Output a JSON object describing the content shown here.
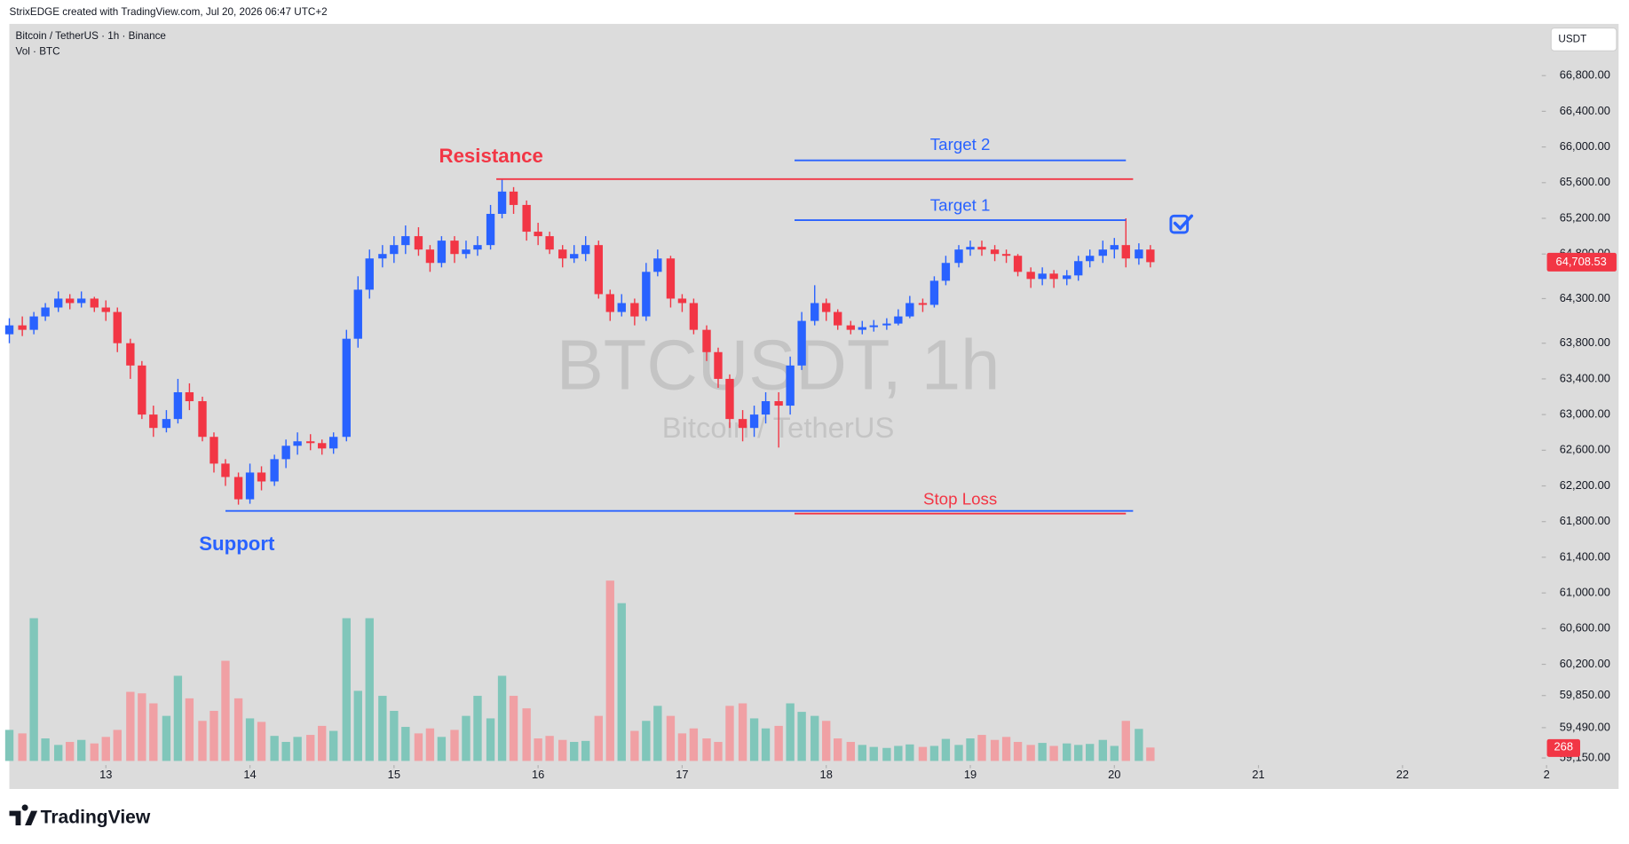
{
  "header": "StrixEDGE created with TradingView.com, Jul 20, 2026 06:47 UTC+2",
  "brand": "TradingView",
  "chart_data": {
    "type": "candlestick",
    "symbol": "Bitcoin / TetherUS · 1h · Binance",
    "volume_title": "Vol · BTC",
    "currency": "USDT",
    "watermark": "BTCUSDT, 1h",
    "watermark_sub": "Bitcoin / TetherUS",
    "up_color": "#2962ff",
    "down_color": "#f23645",
    "volume_up_color": "#80c6ba",
    "volume_down_color": "#f0a0a4",
    "grid": false,
    "xlim": [
      12.33,
      23.5
    ],
    "xticks": [
      13,
      14,
      15,
      16,
      17,
      18,
      19,
      20,
      21,
      22,
      {
        "value": 23,
        "label": "2"
      }
    ],
    "ylim": [
      59070,
      67380
    ],
    "yticks": [
      {
        "value": 66800,
        "label": "66,800.00"
      },
      {
        "value": 66400,
        "label": "66,400.00"
      },
      {
        "value": 66000,
        "label": "66,000.00"
      },
      {
        "value": 65600,
        "label": "65,600.00"
      },
      {
        "value": 65200,
        "label": "65,200.00"
      },
      {
        "value": 64800,
        "label": "64,800.00"
      },
      {
        "value": 64300,
        "label": "64,300.00"
      },
      {
        "value": 63800,
        "label": "63,800.00"
      },
      {
        "value": 63400,
        "label": "63,400.00"
      },
      {
        "value": 63000,
        "label": "63,000.00"
      },
      {
        "value": 62600,
        "label": "62,600.00"
      },
      {
        "value": 62200,
        "label": "62,200.00"
      },
      {
        "value": 61800,
        "label": "61,800.00"
      },
      {
        "value": 61400,
        "label": "61,400.00"
      },
      {
        "value": 61000,
        "label": "61,000.00"
      },
      {
        "value": 60600,
        "label": "60,600.00"
      },
      {
        "value": 60200,
        "label": "60,200.00"
      },
      {
        "value": 59850,
        "label": "59,850.00"
      },
      {
        "value": 59490,
        "label": "59,490.00"
      },
      {
        "value": 59150,
        "label": "59,150.00"
      }
    ],
    "volume_ylim": [
      0,
      4000
    ],
    "price_label": {
      "value": 64708.53,
      "label": "64,708.53"
    },
    "x": [
      12.33,
      12.42,
      12.5,
      12.58,
      12.67,
      12.75,
      12.83,
      12.92,
      13,
      13.08,
      13.17,
      13.25,
      13.33,
      13.42,
      13.5,
      13.58,
      13.67,
      13.75,
      13.83,
      13.92,
      14,
      14.08,
      14.17,
      14.25,
      14.33,
      14.42,
      14.5,
      14.58,
      14.67,
      14.75,
      14.83,
      14.92,
      15,
      15.08,
      15.17,
      15.25,
      15.33,
      15.42,
      15.5,
      15.58,
      15.67,
      15.75,
      15.83,
      15.92,
      16,
      16.08,
      16.17,
      16.25,
      16.33,
      16.42,
      16.5,
      16.58,
      16.67,
      16.75,
      16.83,
      16.92,
      17,
      17.08,
      17.17,
      17.25,
      17.33,
      17.42,
      17.5,
      17.58,
      17.67,
      17.75,
      17.83,
      17.92,
      18,
      18.08,
      18.17,
      18.25,
      18.33,
      18.42,
      18.5,
      18.58,
      18.67,
      18.75,
      18.83,
      18.92,
      19,
      19.08,
      19.17,
      19.25,
      19.33,
      19.42,
      19.5,
      19.58,
      19.67,
      19.75,
      19.83,
      19.92,
      20,
      20.08,
      20.17,
      20.25
    ],
    "open": [
      63900,
      64000,
      63950,
      64100,
      64200,
      64300,
      64250,
      64300,
      64200,
      64150,
      63800,
      63550,
      63000,
      62850,
      62950,
      63250,
      63150,
      62750,
      62450,
      62300,
      62050,
      62350,
      62250,
      62500,
      62650,
      62700,
      62680,
      62620,
      62750,
      63850,
      64400,
      64750,
      64800,
      64900,
      65000,
      64850,
      64700,
      64950,
      64800,
      64850,
      64900,
      65250,
      65500,
      65350,
      65050,
      65000,
      64850,
      64750,
      64800,
      64900,
      64350,
      64150,
      64250,
      64100,
      64600,
      64750,
      64300,
      64250,
      63950,
      63700,
      63400,
      62950,
      62850,
      63000,
      63150,
      63100,
      63550,
      64050,
      64250,
      64150,
      64000,
      63950,
      63980,
      64000,
      64020,
      64100,
      64250,
      64230,
      64500,
      64700,
      64850,
      64880,
      64850,
      64800,
      64780,
      64600,
      64520,
      64580,
      64520,
      64560,
      64720,
      64780,
      64850,
      64900,
      64750,
      64850
    ],
    "high": [
      64080,
      64100,
      64150,
      64250,
      64380,
      64350,
      64380,
      64320,
      64280,
      64200,
      63850,
      63600,
      63100,
      63050,
      63400,
      63350,
      63200,
      62800,
      62500,
      62350,
      62450,
      62420,
      62550,
      62720,
      62800,
      62780,
      62720,
      62800,
      63950,
      64550,
      64850,
      64900,
      65000,
      65120,
      65100,
      64900,
      65000,
      65000,
      64950,
      65000,
      65350,
      65640,
      65550,
      65400,
      65150,
      65050,
      64900,
      64900,
      65000,
      64950,
      64400,
      64350,
      64300,
      64700,
      64850,
      64780,
      64350,
      64300,
      64000,
      63750,
      63450,
      63050,
      63100,
      63250,
      63250,
      63650,
      64150,
      64450,
      64300,
      64180,
      64050,
      64050,
      64060,
      64080,
      64180,
      64330,
      64300,
      64550,
      64780,
      64900,
      64950,
      64950,
      64900,
      64850,
      64800,
      64650,
      64650,
      64620,
      64620,
      64780,
      64850,
      64950,
      64980,
      65200,
      64920,
      64900
    ],
    "low": [
      63800,
      63880,
      63900,
      64050,
      64150,
      64180,
      64200,
      64150,
      64050,
      63700,
      63400,
      62950,
      62750,
      62800,
      62900,
      63050,
      62700,
      62350,
      62200,
      61990,
      62000,
      62150,
      62200,
      62400,
      62550,
      62600,
      62550,
      62560,
      62700,
      63750,
      64300,
      64650,
      64700,
      64800,
      64780,
      64600,
      64650,
      64700,
      64750,
      64780,
      64850,
      65200,
      65250,
      64950,
      64900,
      64800,
      64650,
      64700,
      64720,
      64300,
      64050,
      64100,
      64000,
      64050,
      64550,
      64200,
      64150,
      63900,
      63600,
      63300,
      62850,
      62700,
      62750,
      62900,
      62630,
      63000,
      63500,
      64000,
      64050,
      63950,
      63900,
      63900,
      63930,
      63950,
      64000,
      64080,
      64150,
      64200,
      64450,
      64650,
      64780,
      64780,
      64720,
      64700,
      64550,
      64420,
      64450,
      64420,
      64450,
      64500,
      64650,
      64700,
      64750,
      64650,
      64680,
      64650
    ],
    "close": [
      64000,
      63950,
      64100,
      64200,
      64300,
      64250,
      64300,
      64200,
      64150,
      63800,
      63550,
      63000,
      62850,
      62950,
      63250,
      63150,
      62750,
      62450,
      62300,
      62050,
      62350,
      62250,
      62500,
      62650,
      62700,
      62680,
      62620,
      62750,
      63850,
      64400,
      64750,
      64800,
      64900,
      65000,
      64850,
      64700,
      64950,
      64800,
      64850,
      64900,
      65250,
      65500,
      65350,
      65050,
      65000,
      64850,
      64750,
      64800,
      64900,
      64350,
      64150,
      64250,
      64100,
      64600,
      64750,
      64300,
      64250,
      63950,
      63700,
      63400,
      62950,
      62850,
      63000,
      63150,
      63100,
      63550,
      64050,
      64250,
      64150,
      64000,
      63950,
      63980,
      64000,
      64020,
      64100,
      64250,
      64230,
      64500,
      64700,
      64850,
      64880,
      64850,
      64800,
      64780,
      64600,
      64520,
      64580,
      64520,
      64560,
      64720,
      64780,
      64850,
      64900,
      64750,
      64850,
      64708.53
    ],
    "volume": [
      620,
      550,
      2850,
      450,
      320,
      380,
      420,
      350,
      480,
      620,
      1380,
      1350,
      1150,
      900,
      1700,
      1250,
      800,
      1000,
      2000,
      1250,
      850,
      780,
      500,
      380,
      480,
      520,
      700,
      600,
      2850,
      1400,
      2850,
      1300,
      1000,
      680,
      550,
      650,
      480,
      620,
      900,
      1300,
      850,
      1700,
      1300,
      1050,
      450,
      500,
      420,
      380,
      400,
      900,
      3600,
      3150,
      600,
      800,
      1100,
      900,
      550,
      650,
      450,
      380,
      1100,
      1150,
      850,
      650,
      700,
      1150,
      980,
      900,
      800,
      450,
      380,
      320,
      280,
      260,
      300,
      330,
      280,
      300,
      440,
      320,
      450,
      520,
      420,
      480,
      380,
      320,
      360,
      300,
      350,
      320,
      340,
      420,
      300,
      800,
      640,
      268
    ],
    "annotations": [
      {
        "text": "Resistance",
        "price": 65640,
        "x0": 15.71,
        "x1": 20.13,
        "color": "#f23645"
      },
      {
        "text": "Target 2",
        "price": 65850,
        "x0": 17.78,
        "x1": 20.08,
        "color": "#2962ff"
      },
      {
        "text": "Target 1",
        "price": 65180,
        "x0": 17.78,
        "x1": 20.08,
        "color": "#2962ff"
      },
      {
        "text": "Support",
        "price": 61920,
        "x0": 13.83,
        "x1": 20.13,
        "color": "#2962ff"
      },
      {
        "text": "Stop Loss",
        "price": 61890,
        "x0": 17.78,
        "x1": 20.08,
        "color": "#f23645"
      }
    ]
  }
}
